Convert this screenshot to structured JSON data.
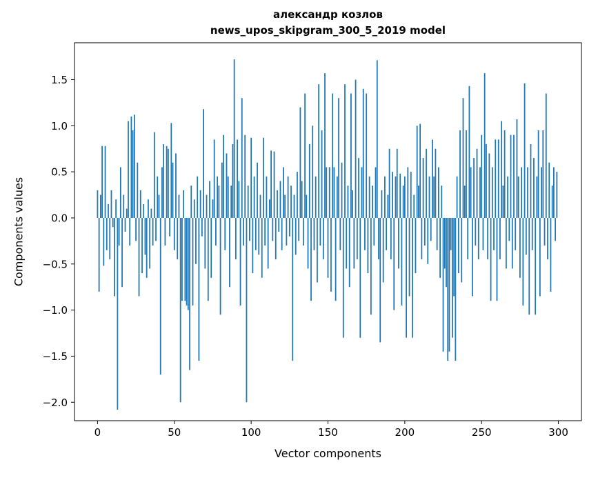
{
  "figure": {
    "title_line1": "александр козлов",
    "title_line2": "news_upos_skipgram_300_5_2019 model",
    "xlabel": "Vector components",
    "ylabel": "Components values"
  },
  "chart_data": {
    "type": "bar",
    "title": "александр козлов — news_upos_skipgram_300_5_2019 model",
    "xlabel": "Vector components",
    "ylabel": "Components values",
    "bar_color": "#1f77b4",
    "axis_color": "#000000",
    "grid": false,
    "legend": null,
    "xlim": [
      -15,
      315
    ],
    "ylim": [
      -2.2,
      1.9
    ],
    "xticks": [
      0,
      50,
      100,
      150,
      200,
      250,
      300
    ],
    "yticks": [
      1.5,
      1.0,
      0.5,
      0.0,
      -0.5,
      -1.0,
      -1.5,
      -2.0
    ],
    "x_start": 0,
    "values": [
      0.3,
      -0.8,
      0.25,
      0.78,
      -0.52,
      0.78,
      -0.35,
      0.15,
      -0.45,
      0.3,
      -0.1,
      -0.85,
      0.2,
      -2.08,
      -0.3,
      0.55,
      -0.75,
      0.25,
      -0.15,
      0.1,
      1.05,
      -0.3,
      1.1,
      0.95,
      1.12,
      -0.25,
      0.6,
      -0.85,
      0.3,
      -0.6,
      0.15,
      -0.4,
      -0.65,
      0.2,
      -0.55,
      0.1,
      -0.3,
      0.93,
      -0.25,
      0.45,
      0.25,
      -1.7,
      0.55,
      0.8,
      -0.3,
      0.78,
      0.75,
      -0.2,
      1.03,
      0.6,
      -0.35,
      0.7,
      -0.45,
      0.25,
      -2.0,
      -0.9,
      0.3,
      -0.9,
      -0.95,
      -1.0,
      -1.65,
      0.35,
      -0.95,
      0.2,
      -0.5,
      0.45,
      -1.55,
      0.3,
      -0.2,
      1.18,
      -0.55,
      0.25,
      -0.9,
      0.4,
      -0.65,
      0.2,
      0.85,
      -0.3,
      0.45,
      0.35,
      -1.05,
      0.6,
      0.9,
      -0.35,
      0.7,
      0.45,
      -0.75,
      0.35,
      0.8,
      1.72,
      -0.45,
      0.85,
      0.4,
      -0.95,
      1.3,
      -0.3,
      0.9,
      -2.0,
      0.35,
      -0.25,
      0.87,
      -0.6,
      0.45,
      -0.35,
      0.6,
      -0.4,
      0.25,
      -0.65,
      0.87,
      -0.3,
      0.45,
      -0.55,
      0.2,
      0.73,
      -0.25,
      0.72,
      -0.45,
      0.3,
      -0.15,
      0.4,
      -0.35,
      0.55,
      0.25,
      -0.3,
      0.45,
      -0.2,
      0.35,
      -1.55,
      0.25,
      -0.4,
      0.5,
      -0.25,
      1.2,
      0.4,
      -0.3,
      1.35,
      0.25,
      -0.55,
      0.8,
      -0.9,
      1.0,
      -0.35,
      0.45,
      -0.7,
      1.45,
      -0.3,
      0.95,
      -0.45,
      1.57,
      0.55,
      -0.65,
      0.55,
      -0.8,
      1.35,
      0.55,
      -0.9,
      0.45,
      1.3,
      -0.35,
      0.6,
      -1.3,
      1.45,
      -0.55,
      0.35,
      -0.75,
      1.35,
      0.3,
      -0.55,
      1.5,
      -0.45,
      0.65,
      -1.3,
      0.55,
      1.4,
      -0.35,
      1.35,
      -0.6,
      0.45,
      -1.05,
      0.35,
      -0.3,
      0.55,
      1.71,
      -0.45,
      -1.35,
      0.3,
      -0.7,
      0.45,
      -0.35,
      0.25,
      0.75,
      -0.45,
      0.5,
      -1.0,
      0.45,
      0.75,
      -0.55,
      0.48,
      -0.95,
      0.35,
      0.45,
      -1.3,
      0.55,
      -0.85,
      0.5,
      -1.3,
      0.25,
      -0.6,
      1.0,
      0.35,
      1.02,
      -0.45,
      0.65,
      -0.3,
      0.75,
      -0.5,
      0.45,
      -0.25,
      0.85,
      0.45,
      0.75,
      -0.35,
      0.55,
      -0.65,
      0.35,
      -1.45,
      -0.55,
      -0.75,
      -1.55,
      -1.45,
      -0.35,
      -1.3,
      -0.85,
      -1.55,
      0.45,
      -0.6,
      0.95,
      -0.7,
      1.3,
      0.35,
      0.95,
      -0.45,
      1.43,
      0.55,
      -0.85,
      0.65,
      -0.3,
      0.75,
      -0.45,
      0.55,
      0.9,
      -0.35,
      1.57,
      0.8,
      -0.45,
      0.7,
      -0.9,
      0.55,
      -0.35,
      0.85,
      -0.9,
      0.85,
      -0.45,
      1.05,
      0.35,
      0.95,
      -0.55,
      0.45,
      -0.25,
      0.9,
      -0.55,
      0.9,
      -0.35,
      1.07,
      0.45,
      -0.65,
      0.55,
      -0.95,
      1.46,
      -0.4,
      0.55,
      -1.05,
      0.8,
      -0.35,
      0.65,
      -1.05,
      0.45,
      0.95,
      -0.85,
      0.55,
      0.95,
      -0.3,
      1.35,
      -0.45,
      0.6,
      -0.8,
      0.35,
      0.55,
      -0.25,
      0.5
    ]
  }
}
